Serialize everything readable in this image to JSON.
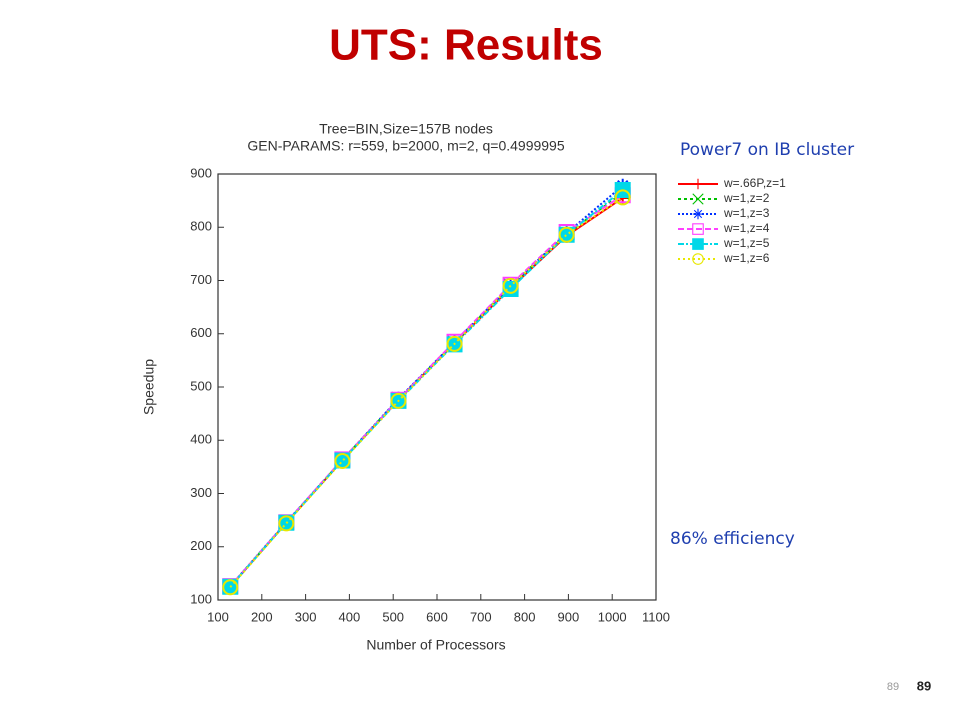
{
  "slide": {
    "title": "UTS: Results",
    "annotations": [
      "Power7 on IB cluster",
      "86% efficiency"
    ],
    "page_number_small": "89",
    "page_number": "89"
  },
  "chart_data": {
    "type": "line",
    "title": "Tree=BIN,Size=157B nodes",
    "subtitle": "GEN-PARAMS: r=559, b=2000, m=2, q=0.4999995",
    "x_label": "Number of Processors",
    "y_label": "Speedup",
    "x": [
      128,
      256,
      384,
      512,
      640,
      768,
      896,
      1024
    ],
    "series": [
      {
        "name": "w=.66P,z=1",
        "color": "#ff0000",
        "marker": "plus",
        "dash": "none",
        "values": [
          125,
          245,
          362,
          476,
          582,
          686,
          784,
          855
        ]
      },
      {
        "name": "w=1,z=2",
        "color": "#00c000",
        "marker": "x",
        "dash": "3,3",
        "values": [
          125,
          245,
          363,
          477,
          583,
          690,
          787,
          865
        ]
      },
      {
        "name": "w=1,z=3",
        "color": "#0030ff",
        "marker": "star",
        "dash": "2,2",
        "values": [
          126,
          246,
          363,
          478,
          584,
          690,
          789,
          878
        ]
      },
      {
        "name": "w=1,z=4",
        "color": "#ff40ff",
        "marker": "square",
        "dash": "6,3",
        "values": [
          126,
          246,
          364,
          476,
          585,
          692,
          791,
          860
        ]
      },
      {
        "name": "w=1,z=5",
        "color": "#00d8e8",
        "marker": "filled-square",
        "dash": "6,2,2,2",
        "values": [
          125,
          245,
          362,
          474,
          580,
          684,
          786,
          870
        ]
      },
      {
        "name": "w=1,z=6",
        "color": "#e8e800",
        "marker": "circle",
        "dash": "2,3",
        "values": [
          124,
          244,
          361,
          474,
          581,
          690,
          786,
          856
        ]
      }
    ],
    "xlim": [
      100,
      1100
    ],
    "xticks": [
      100,
      200,
      300,
      400,
      500,
      600,
      700,
      800,
      900,
      1000,
      1100
    ],
    "ylim": [
      100,
      900
    ],
    "yticks": [
      100,
      200,
      300,
      400,
      500,
      600,
      700,
      800,
      900
    ],
    "grid": false,
    "legend": "upper right"
  }
}
